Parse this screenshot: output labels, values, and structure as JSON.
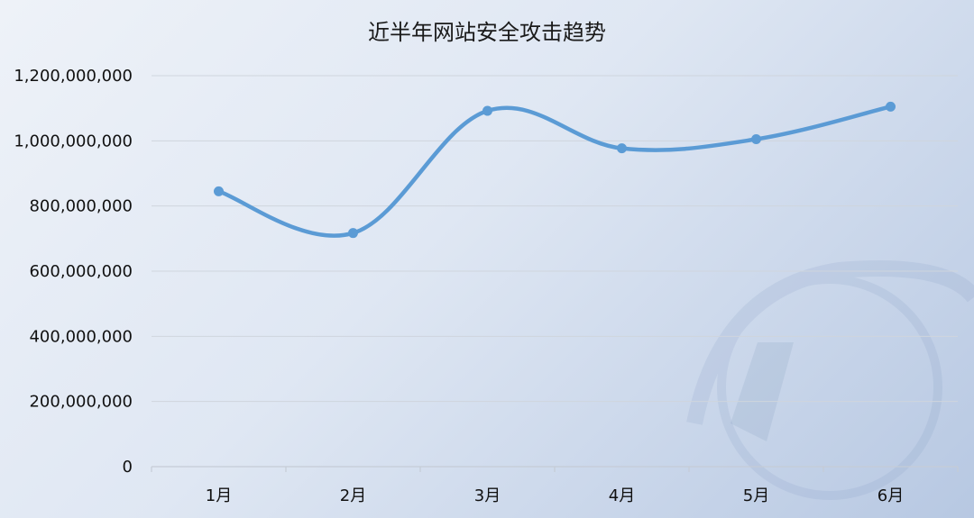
{
  "chart_data": {
    "type": "line",
    "title": "近半年网站安全攻击趋势",
    "categories": [
      "1月",
      "2月",
      "3月",
      "4月",
      "5月",
      "6月"
    ],
    "values": [
      845000000,
      717000000,
      1092000000,
      977000000,
      1005000000,
      1105000000
    ],
    "ylim": [
      0,
      1200000000
    ],
    "yticks": [
      "0",
      "200,000,000",
      "400,000,000",
      "600,000,000",
      "800,000,000",
      "1,000,000,000",
      "1,200,000,000"
    ],
    "ytick_values": [
      0,
      200000000,
      400000000,
      600000000,
      800000000,
      1000000000,
      1200000000
    ],
    "grid": true,
    "smooth": true,
    "line_color": "#5b9bd5"
  }
}
